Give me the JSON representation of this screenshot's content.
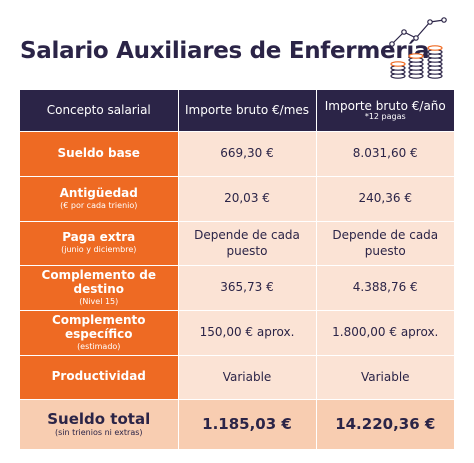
{
  "title": "Salario Auxiliares de Enfermería",
  "headers": {
    "concept": "Concepto salarial",
    "monthly": "Importe bruto €/mes",
    "annual": "Importe bruto €/año",
    "annual_note": "*12 pagas"
  },
  "rows": [
    {
      "concept": "Sueldo base",
      "note": "",
      "monthly": "669,30 €",
      "annual": "8.031,60 €"
    },
    {
      "concept": "Antigüedad",
      "note": "(€ por cada trienio)",
      "monthly": "20,03 €",
      "annual": "240,36 €"
    },
    {
      "concept": "Paga extra",
      "note": "(junio y diciembre)",
      "monthly": "Depende de cada puesto",
      "annual": "Depende de cada puesto"
    },
    {
      "concept": "Complemento de destino",
      "note": "(Nivel 15)",
      "monthly": "365,73 €",
      "annual": "4.388,76 €"
    },
    {
      "concept": "Complemento específico",
      "note": "(estimado)",
      "monthly": "150,00 € aprox.",
      "annual": "1.800,00 € aprox."
    },
    {
      "concept": "Productividad",
      "note": "",
      "monthly": "Variable",
      "annual": "Variable"
    }
  ],
  "total": {
    "concept": "Sueldo total",
    "note": "(sin trienios ni extras)",
    "monthly": "1.185,03 €",
    "annual": "14.220,36 €"
  },
  "icons": {
    "decoration": "coins-growth-chart-icon"
  },
  "colors": {
    "navy": "#2b2447",
    "orange": "#ee6a23",
    "peach": "#fbe3d5",
    "total": "#f8cdb1"
  }
}
